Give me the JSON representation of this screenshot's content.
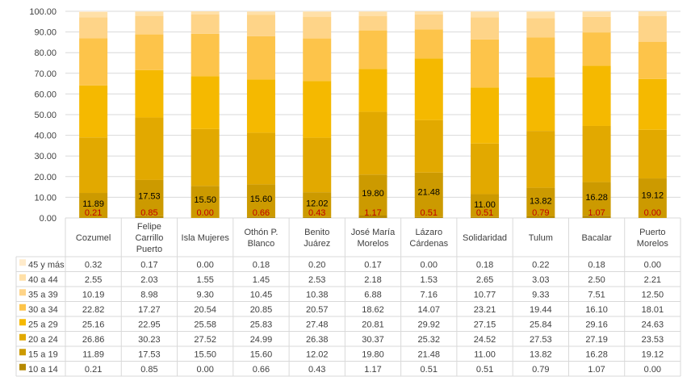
{
  "chart_data": {
    "type": "bar",
    "stacked": true,
    "ylim": [
      0,
      100
    ],
    "yticks": [
      "0.00",
      "10.00",
      "20.00",
      "30.00",
      "40.00",
      "50.00",
      "60.00",
      "70.00",
      "80.00",
      "90.00",
      "100.00"
    ],
    "grid": true,
    "legend_placement": "data-table-left",
    "categories": [
      "Cozumel",
      "Felipe Carrillo Puerto",
      "Isla Mujeres",
      "Othón P. Blanco",
      "Benito Juárez",
      "José María Morelos",
      "Lázaro Cárdenas",
      "Solidaridad",
      "Tulum",
      "Bacalar",
      "Puerto Morelos"
    ],
    "category_lines": [
      [
        "Cozumel"
      ],
      [
        "Felipe",
        "Carrillo",
        "Puerto"
      ],
      [
        "Isla Mujeres"
      ],
      [
        "Othón P.",
        "Blanco"
      ],
      [
        "Benito",
        "Juárez"
      ],
      [
        "José María",
        "Morelos"
      ],
      [
        "Lázaro",
        "Cárdenas"
      ],
      [
        "Solidaridad"
      ],
      [
        "Tulum"
      ],
      [
        "Bacalar"
      ],
      [
        "Puerto",
        "Morelos"
      ]
    ],
    "series": [
      {
        "name": "10 a 14",
        "color": "#B58900",
        "label_color": "#C00000",
        "values": [
          0.21,
          0.85,
          0.0,
          0.66,
          0.43,
          1.17,
          0.51,
          0.51,
          0.79,
          1.07,
          0.0
        ]
      },
      {
        "name": "15 a 19",
        "color": "#CC9A00",
        "label_color": "#000000",
        "values": [
          11.89,
          17.53,
          15.5,
          15.6,
          12.02,
          19.8,
          21.48,
          11.0,
          13.82,
          16.28,
          19.12
        ]
      },
      {
        "name": "20 a 24",
        "color": "#E2A900",
        "values": [
          26.86,
          30.23,
          27.52,
          24.99,
          26.38,
          30.37,
          25.32,
          24.52,
          27.53,
          27.19,
          23.53
        ]
      },
      {
        "name": "25 a 29",
        "color": "#F5B900",
        "values": [
          25.16,
          22.95,
          25.58,
          25.83,
          27.48,
          20.81,
          29.92,
          27.15,
          25.84,
          29.16,
          24.63
        ]
      },
      {
        "name": "30 a 34",
        "color": "#FDC44A",
        "values": [
          22.82,
          17.27,
          20.54,
          20.85,
          20.57,
          18.62,
          14.07,
          23.21,
          19.44,
          16.1,
          18.01
        ]
      },
      {
        "name": "35 a 39",
        "color": "#FED488",
        "values": [
          10.19,
          8.98,
          9.3,
          10.45,
          10.38,
          6.88,
          7.16,
          10.77,
          9.33,
          7.51,
          12.5
        ]
      },
      {
        "name": "40 a 44",
        "color": "#FFE0A8",
        "values": [
          2.55,
          2.03,
          1.55,
          1.45,
          2.53,
          2.18,
          1.53,
          2.65,
          3.03,
          2.5,
          2.21
        ]
      },
      {
        "name": "45 y más",
        "color": "#FFEBCB",
        "values": [
          0.32,
          0.17,
          0.0,
          0.18,
          0.2,
          0.17,
          0.0,
          0.18,
          0.22,
          0.18,
          0.0
        ]
      }
    ],
    "data_labels_series": [
      "10 a 14",
      "15 a 19"
    ]
  }
}
